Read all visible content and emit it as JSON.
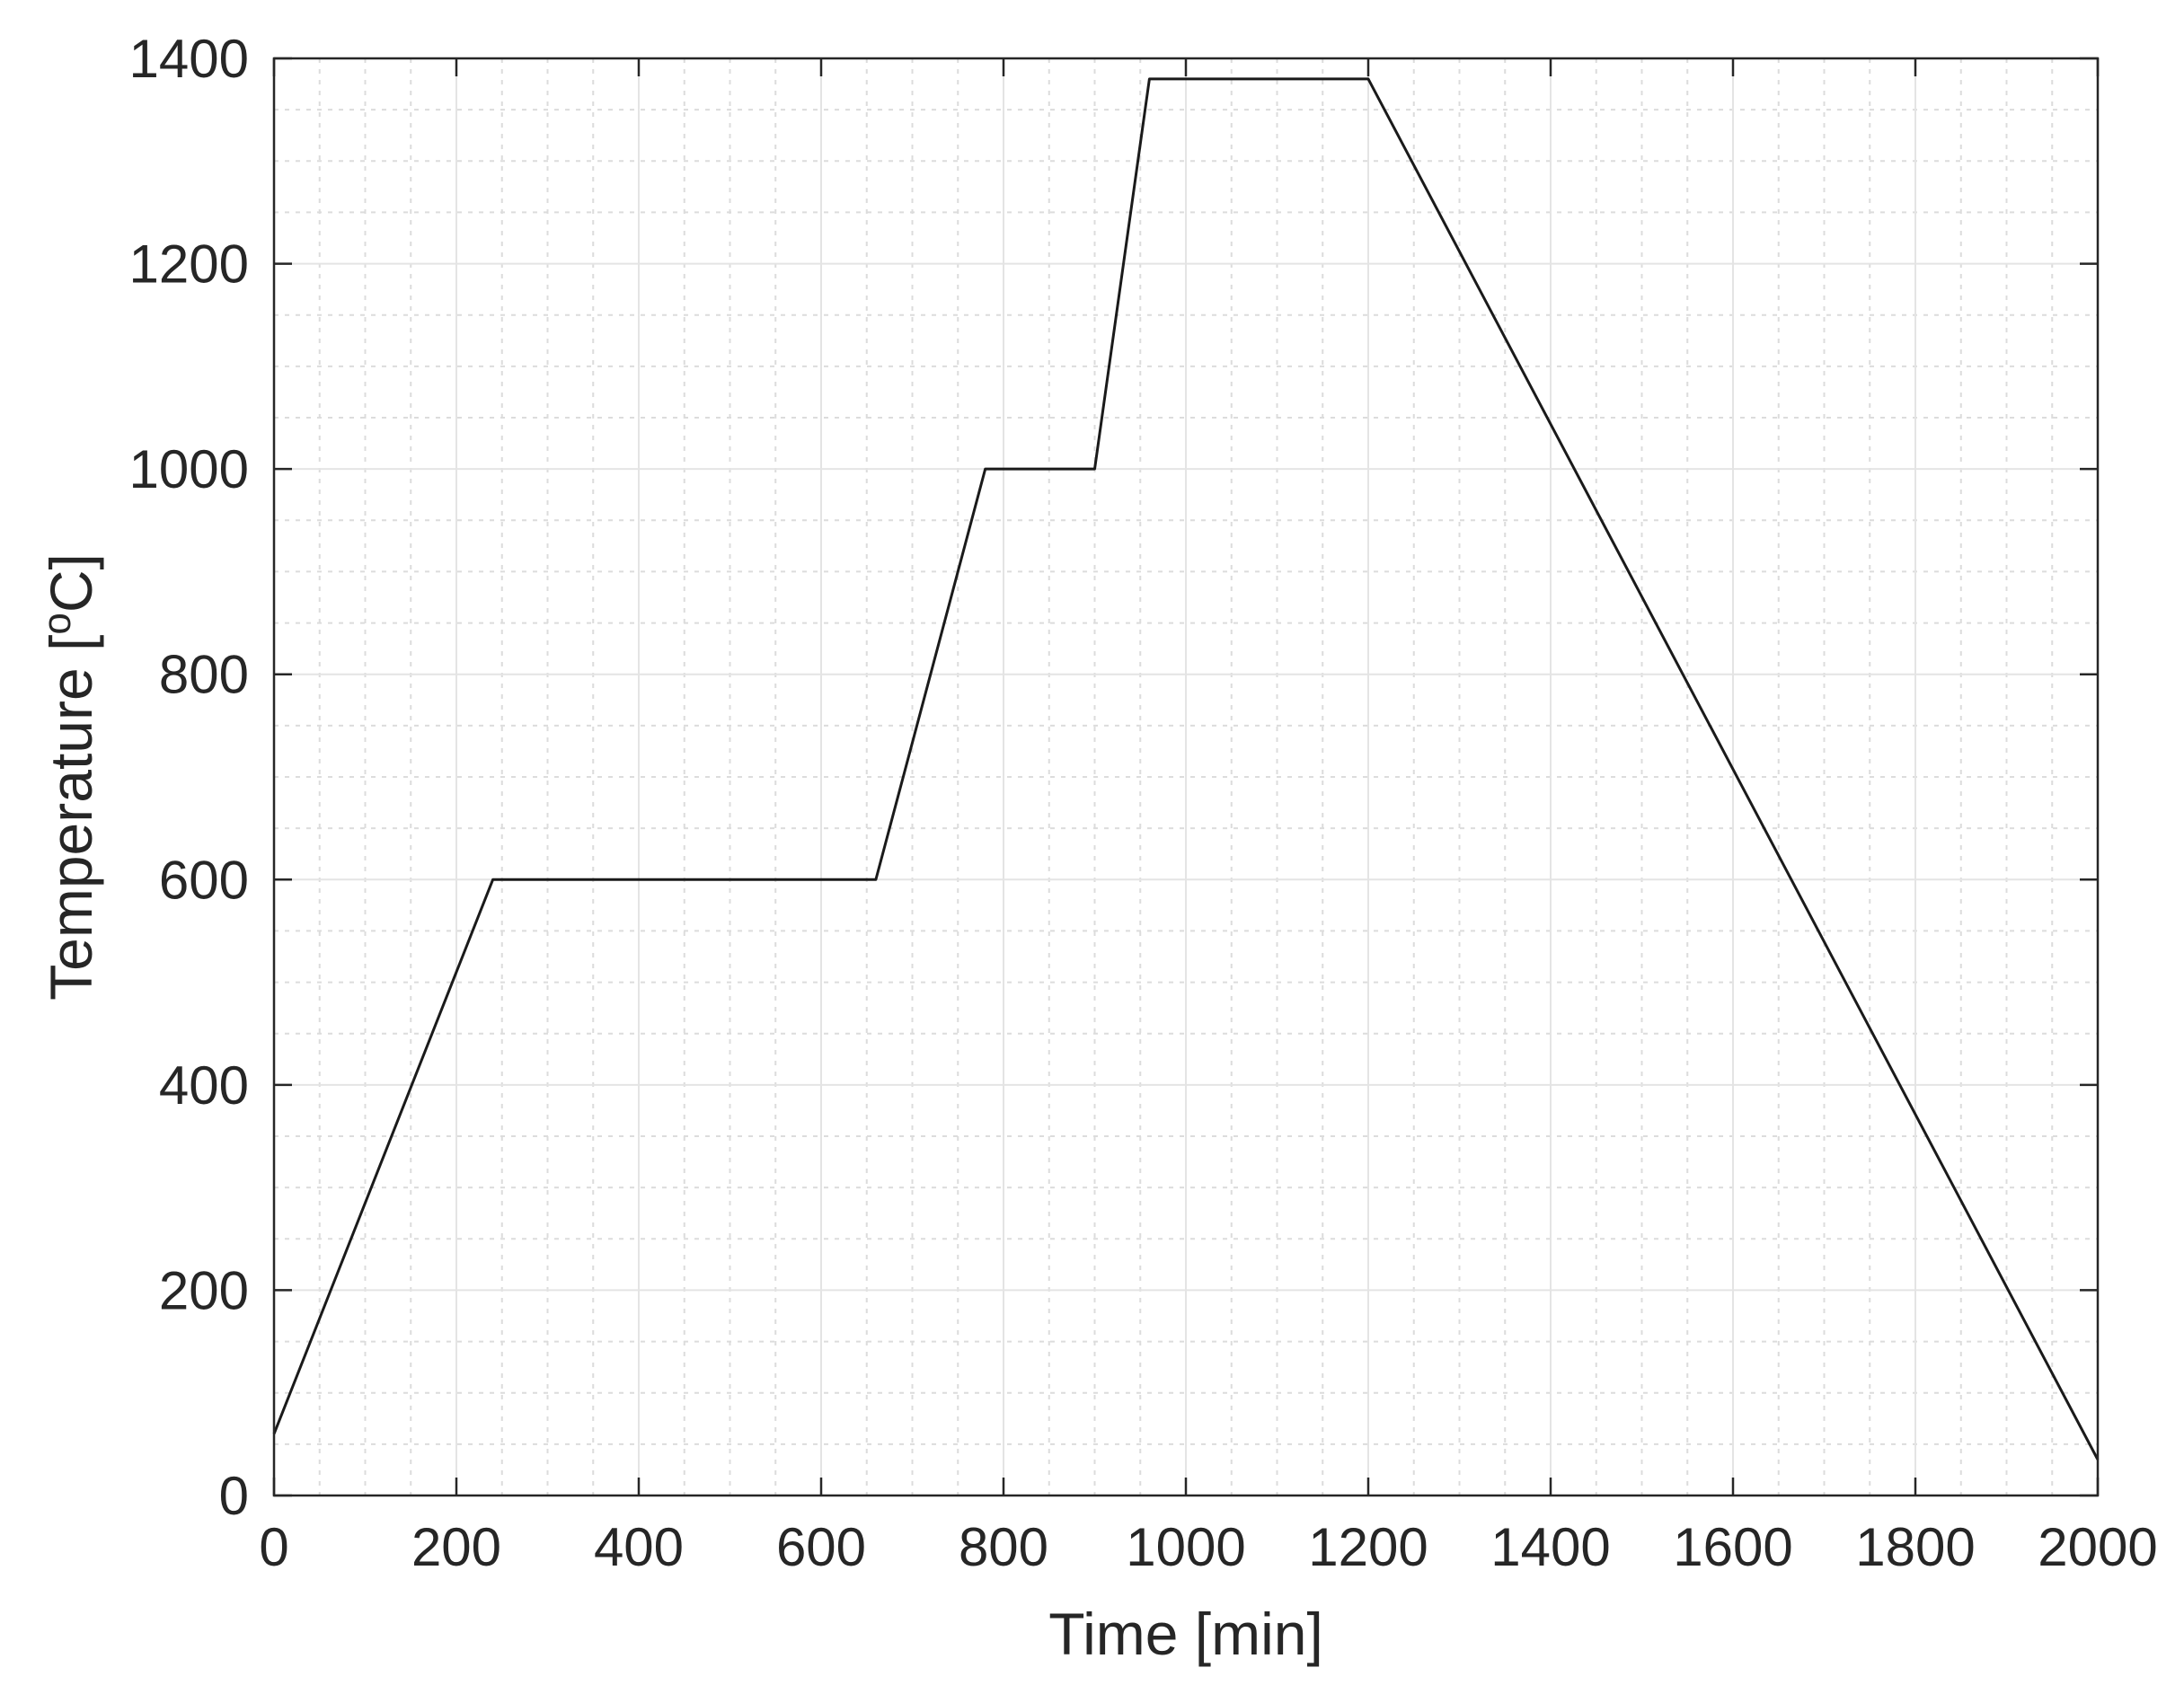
{
  "chart_data": {
    "type": "line",
    "title": "",
    "xlabel": "Time [min]",
    "ylabel": {
      "prefix": "Temperature [",
      "sup": "o",
      "suffix": "C]"
    },
    "xlim": [
      0,
      2000
    ],
    "ylim": [
      0,
      1400
    ],
    "xticks": [
      0,
      200,
      400,
      600,
      800,
      1000,
      1200,
      1400,
      1600,
      1800,
      2000
    ],
    "yticks": [
      0,
      200,
      400,
      600,
      800,
      1000,
      1200,
      1400
    ],
    "grid": {
      "major": true,
      "minor": true,
      "minor_step_x": 50,
      "minor_step_y": 50
    },
    "series": [
      {
        "color": "#1a1a1a",
        "x": [
          0,
          240,
          660,
          780,
          900,
          960,
          1200,
          2000
        ],
        "y": [
          60,
          600,
          600,
          1000,
          1000,
          1380,
          1380,
          35
        ]
      }
    ]
  }
}
